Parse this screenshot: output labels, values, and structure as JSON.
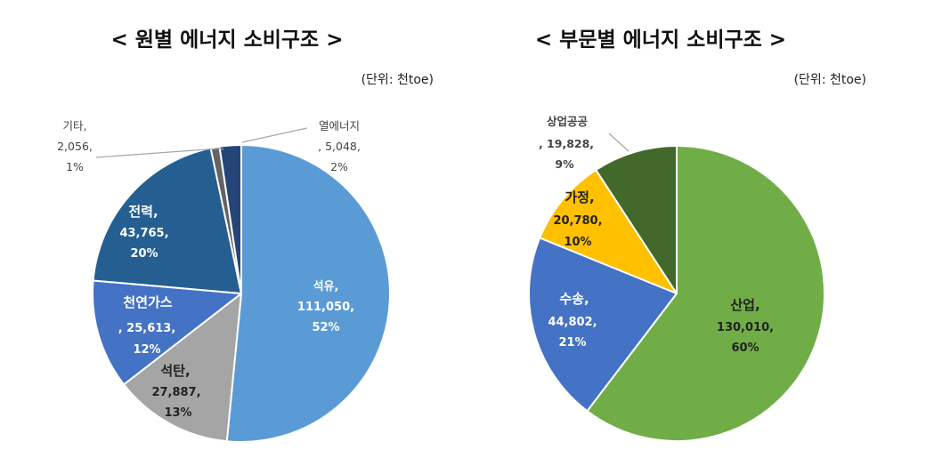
{
  "chart_data": [
    {
      "type": "pie",
      "title": "< 원별 에너지 소비구조 >",
      "unit_note": "(단위: 천toe)",
      "slices": [
        {
          "name": "석유",
          "value": 111050,
          "percent": "52%",
          "value_label": "111,050,",
          "name_label": "석유,",
          "color": "#5B9BD5",
          "text_color": "#ffffff"
        },
        {
          "name": "석탄",
          "value": 27887,
          "percent": "13%",
          "value_label": "27,887,",
          "name_label": "석탄,",
          "color": "#A5A5A5",
          "text_color": "#222222"
        },
        {
          "name": "천연가스",
          "value": 25613,
          "percent": "12%",
          "value_label": ", 25,613,",
          "name_label": "천연가스",
          "color": "#4472C4",
          "text_color": "#ffffff"
        },
        {
          "name": "전력",
          "value": 43765,
          "percent": "20%",
          "value_label": "43,765,",
          "name_label": "전력,",
          "color": "#255E91",
          "text_color": "#ffffff"
        },
        {
          "name": "기타",
          "value": 2056,
          "percent": "1%",
          "value_label": "2,056,",
          "name_label": "기타,",
          "color": "#636363",
          "text_color": "#444444"
        },
        {
          "name": "열에너지",
          "value": 5048,
          "percent": "2%",
          "value_label": ", 5,048,",
          "name_label": "열에너지",
          "color": "#264478",
          "text_color": "#444444"
        }
      ]
    },
    {
      "type": "pie",
      "title": "< 부문별 에너지 소비구조 >",
      "unit_note": "(단위: 천toe)",
      "slices": [
        {
          "name": "산업",
          "value": 130010,
          "percent": "60%",
          "value_label": "130,010,",
          "name_label": "산업,",
          "color": "#70AD47",
          "text_color": "#222222"
        },
        {
          "name": "수송",
          "value": 44802,
          "percent": "21%",
          "value_label": "44,802,",
          "name_label": "수송,",
          "color": "#4472C4",
          "text_color": "#ffffff"
        },
        {
          "name": "가정",
          "value": 20780,
          "percent": "10%",
          "value_label": "20,780,",
          "name_label": "가정,",
          "color": "#FFC000",
          "text_color": "#222222"
        },
        {
          "name": "상업공공",
          "value": 19828,
          "percent": "9%",
          "value_label": ", 19,828,",
          "name_label": "상업공공",
          "color": "#43682B",
          "text_color": "#222222"
        }
      ]
    }
  ]
}
